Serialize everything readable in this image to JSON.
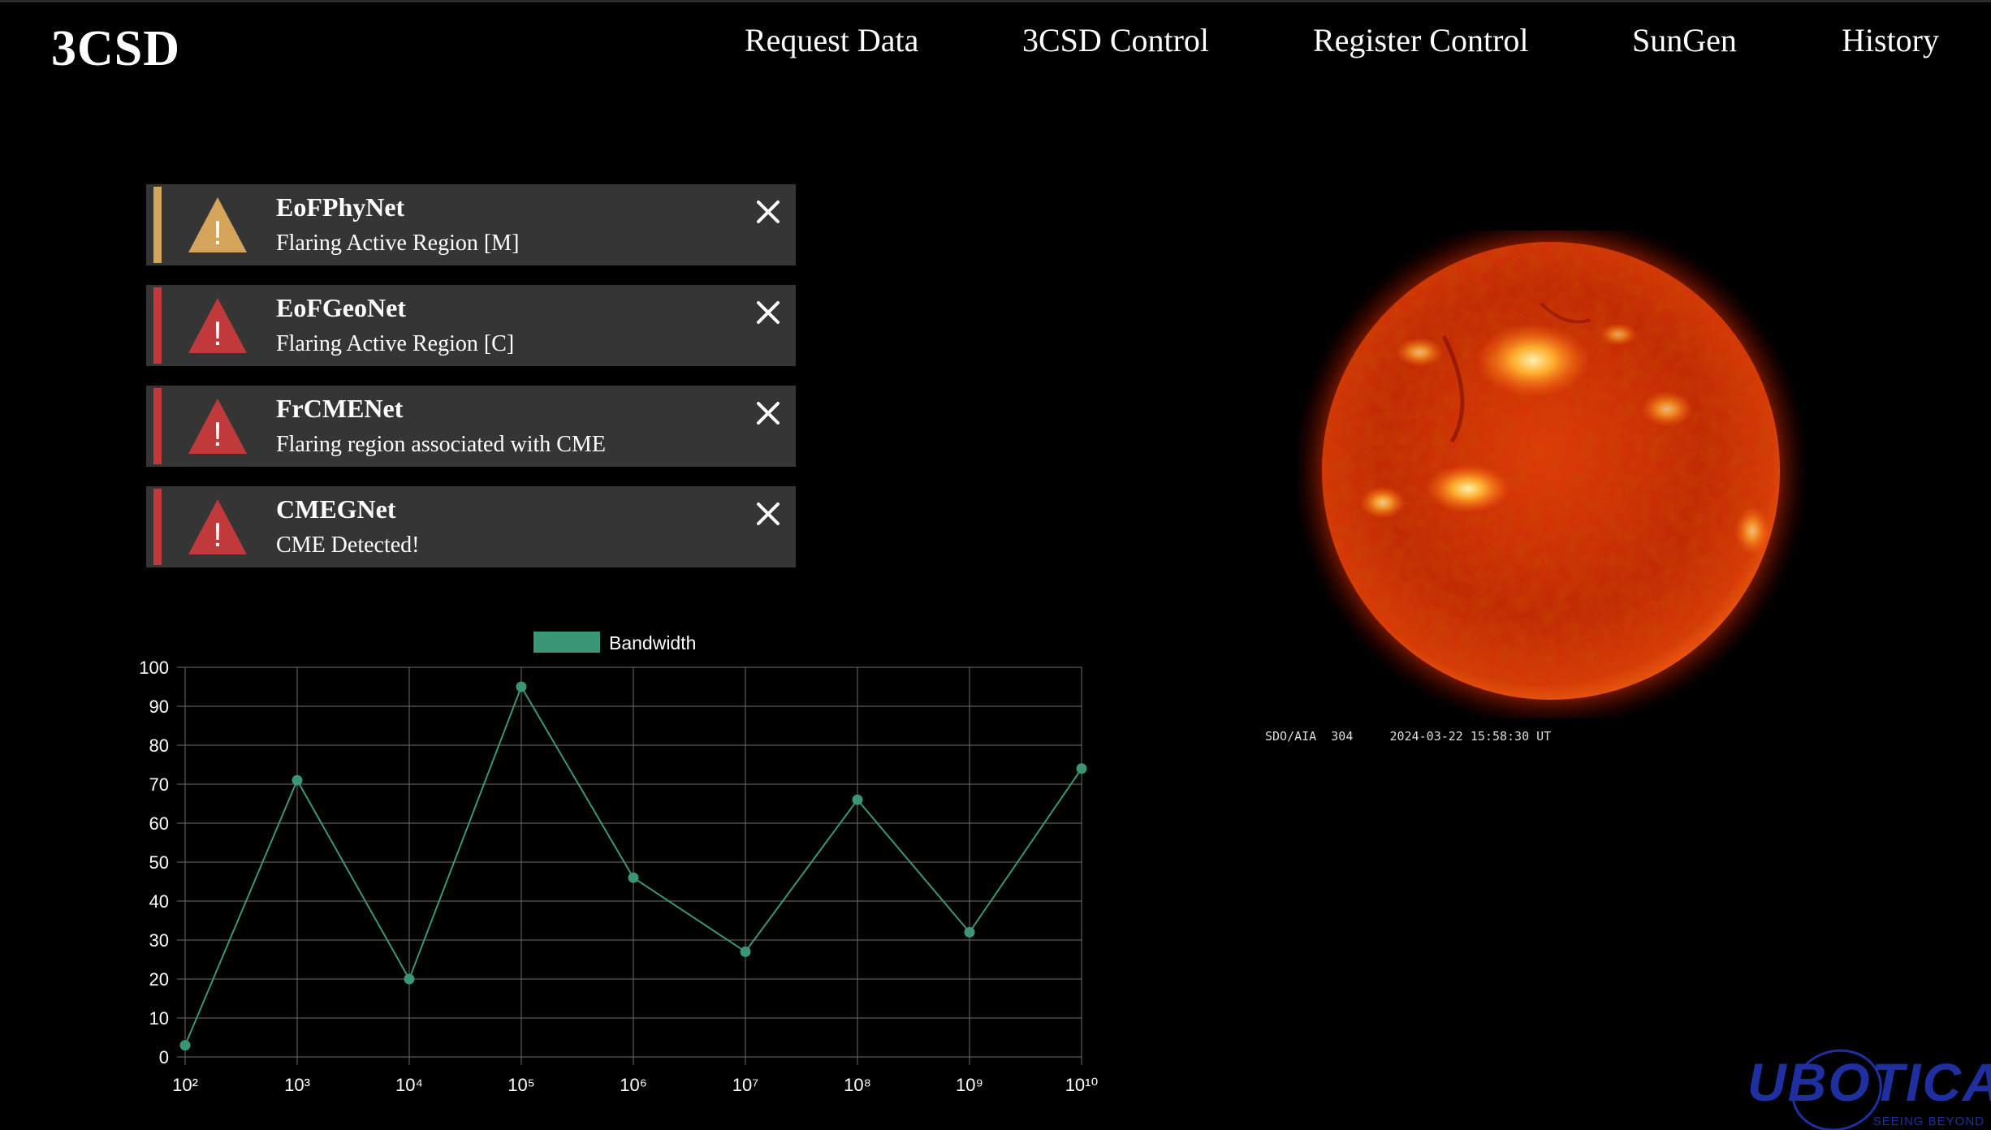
{
  "app": {
    "brand": "3CSD"
  },
  "nav": {
    "items": [
      {
        "label": "Request Data"
      },
      {
        "label": "3CSD Control"
      },
      {
        "label": "Register Control"
      },
      {
        "label": "SunGen"
      },
      {
        "label": "History"
      }
    ]
  },
  "alerts": [
    {
      "title": "EoFPhyNet",
      "message": "Flaring Active Region [M]",
      "severity": "warning",
      "color": "#d4a45a"
    },
    {
      "title": "EoFGeoNet",
      "message": "Flaring Active Region [C]",
      "severity": "critical",
      "color": "#c0393b"
    },
    {
      "title": "FrCMENet",
      "message": "Flaring region associated with CME",
      "severity": "critical",
      "color": "#c0393b"
    },
    {
      "title": "CMEGNet",
      "message": "CME Detected!",
      "severity": "critical",
      "color": "#c0393b"
    }
  ],
  "sun_image": {
    "caption": "SDO/AIA  304     2024-03-22 15:58:30 UT"
  },
  "logo": {
    "text": "UBOTICA",
    "tagline": "SEEING BEYOND",
    "color": "#1f2fa0"
  },
  "chart_data": {
    "type": "line",
    "x_labels": [
      "10²",
      "10³",
      "10⁴",
      "10⁵",
      "10⁶",
      "10⁷",
      "10⁸",
      "10⁹",
      "10¹⁰"
    ],
    "series": [
      {
        "name": "Bandwidth",
        "values": [
          3,
          71,
          20,
          95,
          46,
          27,
          66,
          32,
          74
        ],
        "color": "#3a9677"
      }
    ],
    "ylim": [
      0,
      100
    ],
    "y_ticks": [
      0,
      10,
      20,
      30,
      40,
      50,
      60,
      70,
      80,
      90,
      100
    ],
    "grid": true,
    "legend": "top-center"
  }
}
